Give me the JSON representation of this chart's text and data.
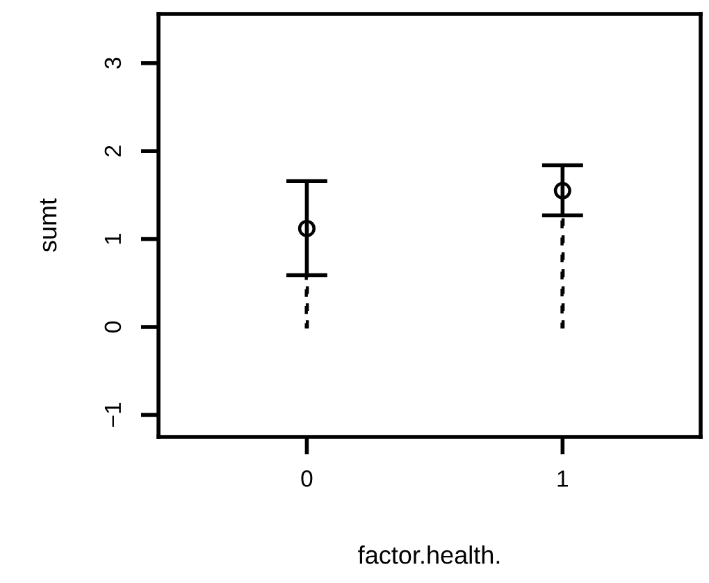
{
  "chart_data": {
    "type": "scatter",
    "xlabel": "factor.health.",
    "ylabel": "sumt",
    "x": [
      0,
      1
    ],
    "series": [
      {
        "type": "bar",
        "color": "#000000",
        "line_style": "dashed",
        "values": [
          0.59,
          1.27
        ]
      },
      {
        "color": "#000000",
        "marker": "circle",
        "values": [
          1.12,
          1.55
        ],
        "errors": [
          [
            0.59,
            1.66
          ],
          [
            1.27,
            1.84
          ]
        ]
      }
    ],
    "xlim": [
      -0.58,
      1.54
    ],
    "xticks": [
      0,
      1
    ],
    "ylim": [
      -1.25,
      3.56
    ],
    "yticks": [
      {
        "value": -1,
        "label": "−1"
      },
      0,
      1,
      2,
      3
    ],
    "grid": false,
    "legend": false
  }
}
